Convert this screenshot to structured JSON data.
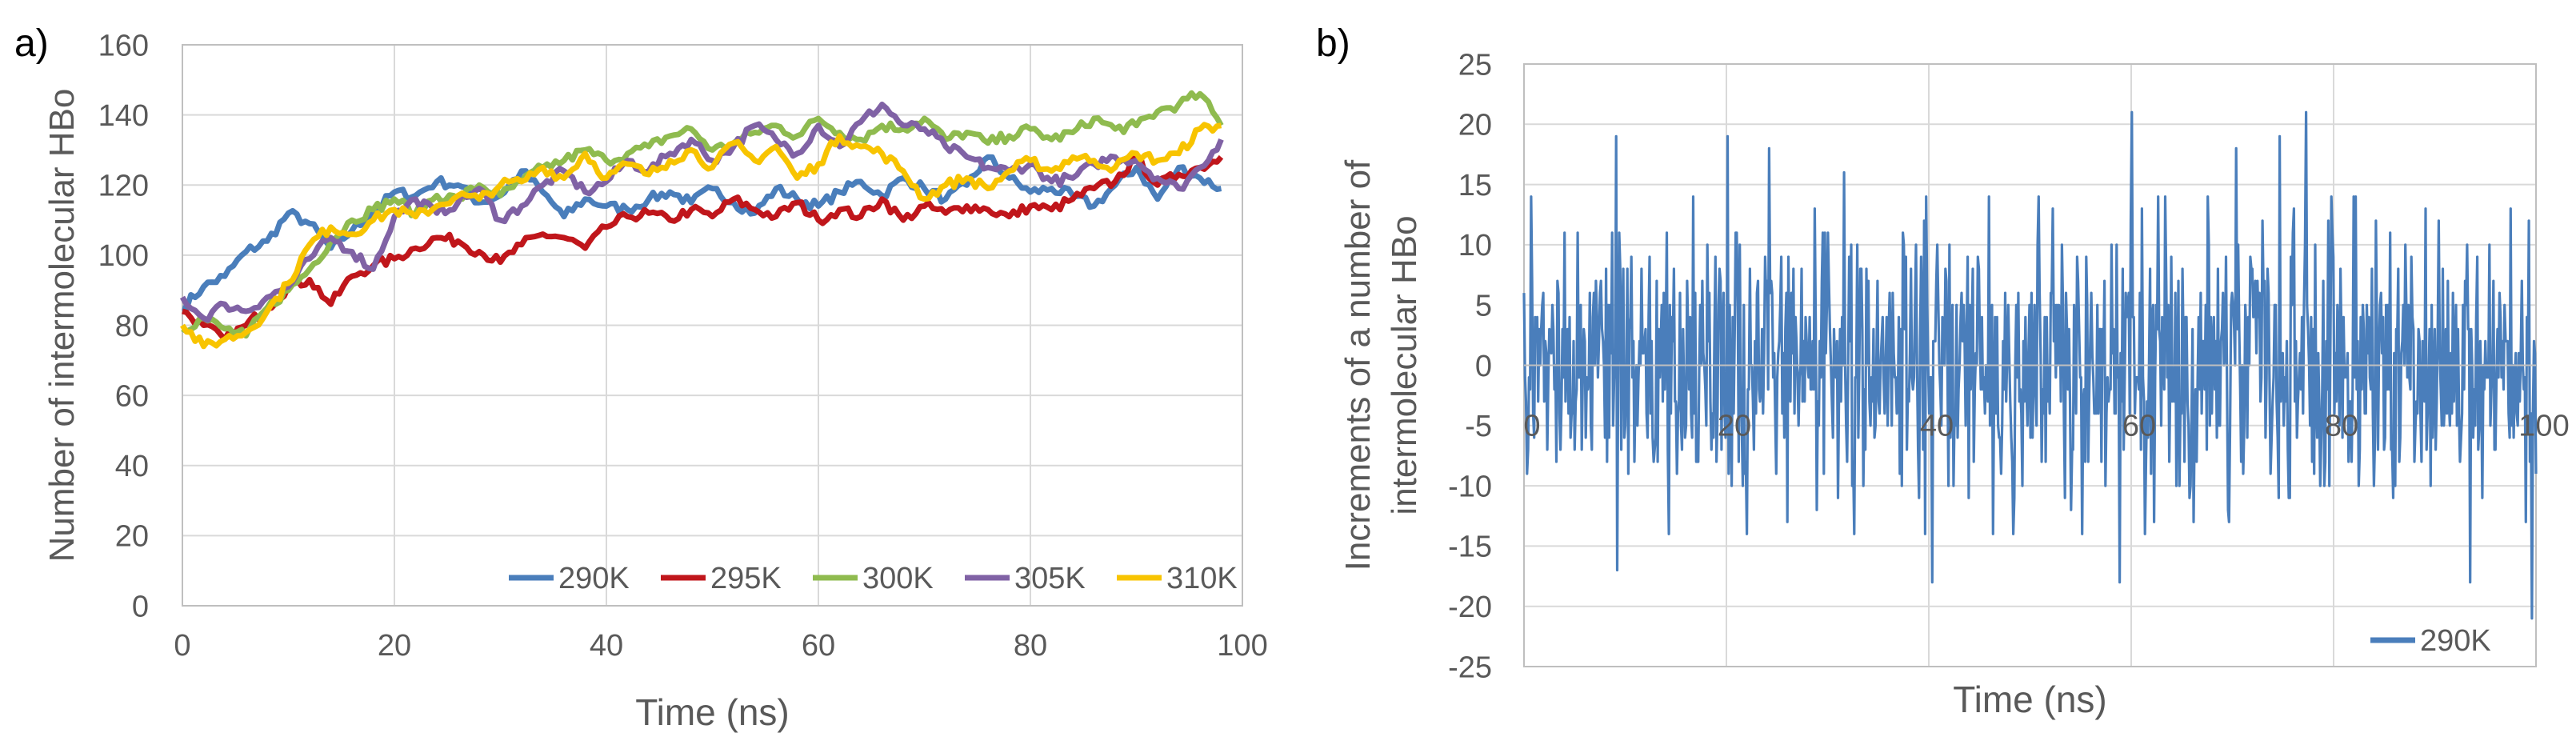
{
  "panel_a_label": "a)",
  "panel_b_label": "b)",
  "colors": {
    "290K": "#4a7ebb",
    "295K": "#c0161b",
    "300K": "#8fbb4f",
    "305K": "#8062a5",
    "310K": "#f8c400",
    "grid": "#d9d9d9",
    "axis": "#bfbfbf",
    "text": "#595959"
  },
  "chart_data": [
    {
      "id": "a",
      "type": "line",
      "title": "",
      "xlabel": "Time (ns)",
      "ylabel": "Number of intermolecular HBo",
      "xlim": [
        0,
        100
      ],
      "ylim": [
        0,
        160
      ],
      "xticks": [
        0,
        20,
        40,
        60,
        80,
        100
      ],
      "yticks": [
        0,
        20,
        40,
        60,
        80,
        100,
        120,
        140,
        160
      ],
      "grid": true,
      "legend_position": "bottom-right",
      "x": [
        0,
        2,
        4,
        6,
        8,
        10,
        12,
        14,
        16,
        18,
        20,
        22,
        24,
        26,
        28,
        30,
        32,
        34,
        36,
        38,
        40,
        42,
        44,
        46,
        48,
        50,
        52,
        54,
        56,
        58,
        60,
        62,
        64,
        66,
        68,
        70,
        72,
        74,
        76,
        78,
        80,
        82,
        84,
        86,
        88,
        90,
        92,
        94,
        96,
        98
      ],
      "series": [
        {
          "name": "290K",
          "values": [
            85,
            91,
            94,
            101,
            104,
            112,
            109,
            102,
            107,
            112,
            118,
            117,
            121,
            120,
            115,
            117,
            124,
            118,
            111,
            116,
            114,
            113,
            116,
            118,
            115,
            119,
            115,
            112,
            119,
            116,
            114,
            118,
            121,
            117,
            122,
            119,
            116,
            120,
            128,
            122,
            118,
            119,
            117,
            114,
            120,
            125,
            116,
            125,
            122,
            119
          ]
        },
        {
          "name": "295K",
          "values": [
            84,
            80,
            76,
            80,
            85,
            91,
            93,
            86,
            94,
            97,
            99,
            102,
            105,
            104,
            101,
            98,
            103,
            106,
            105,
            102,
            108,
            111,
            112,
            110,
            113,
            111,
            116,
            113,
            111,
            115,
            110,
            113,
            111,
            116,
            110,
            114,
            112,
            114,
            113,
            111,
            114,
            113,
            116,
            119,
            121,
            128,
            120,
            123,
            125,
            128
          ]
        },
        {
          "name": "300K",
          "values": [
            79,
            82,
            79,
            77,
            85,
            90,
            96,
            104,
            110,
            113,
            116,
            112,
            117,
            116,
            120,
            117,
            121,
            125,
            127,
            130,
            127,
            129,
            131,
            134,
            136,
            130,
            132,
            135,
            137,
            134,
            139,
            135,
            133,
            137,
            136,
            139,
            133,
            135,
            132,
            134,
            136,
            133,
            135,
            139,
            136,
            137,
            141,
            143,
            146,
            137
          ]
        },
        {
          "name": "305K",
          "values": [
            88,
            82,
            86,
            84,
            88,
            91,
            99,
            105,
            101,
            96,
            111,
            116,
            112,
            115,
            119,
            110,
            114,
            120,
            124,
            118,
            121,
            127,
            124,
            129,
            133,
            127,
            131,
            137,
            133,
            129,
            137,
            131,
            138,
            143,
            137,
            136,
            131,
            128,
            125,
            124,
            126,
            121,
            122,
            126,
            128,
            127,
            122,
            119,
            125,
            133
          ]
        },
        {
          "name": "310K",
          "values": [
            80,
            74,
            76,
            78,
            84,
            92,
            103,
            108,
            106,
            110,
            113,
            111,
            114,
            117,
            116,
            120,
            121,
            125,
            122,
            129,
            122,
            126,
            123,
            127,
            130,
            125,
            132,
            127,
            131,
            122,
            126,
            134,
            131,
            129,
            124,
            116,
            120,
            122,
            119,
            124,
            127,
            124,
            128,
            127,
            125,
            129,
            127,
            129,
            136,
            137
          ]
        }
      ]
    },
    {
      "id": "b",
      "type": "line",
      "title": "",
      "xlabel": "Time (ns)",
      "ylabel": "Increments of a number of intermolecular HBo",
      "ylabel_lines": [
        "Increments of a number of",
        "intermolecular HBo"
      ],
      "xlim": [
        0,
        100
      ],
      "ylim": [
        -25,
        25
      ],
      "xticks": [
        0,
        20,
        40,
        60,
        80,
        100
      ],
      "yticks": [
        -25,
        -20,
        -15,
        -10,
        -5,
        0,
        5,
        10,
        15,
        20,
        25
      ],
      "grid": true,
      "legend_position": "bottom-right",
      "series": [
        {
          "name": "290K",
          "x_range": [
            0,
            100
          ],
          "num_points": 1000,
          "noise_amplitude": 7,
          "extremes": [
            [
              9.1,
              19
            ],
            [
              9.2,
              -17
            ],
            [
              20.1,
              19
            ],
            [
              40.3,
              -18
            ],
            [
              60.1,
              21
            ],
            [
              74.7,
              19
            ],
            [
              77.3,
              21
            ],
            [
              93.5,
              -18
            ],
            [
              99.6,
              -21
            ],
            [
              99.3,
              12
            ],
            [
              24.2,
              18
            ],
            [
              31.6,
              16
            ],
            [
              58.9,
              -18
            ],
            [
              70.4,
              18
            ]
          ]
        }
      ]
    }
  ]
}
